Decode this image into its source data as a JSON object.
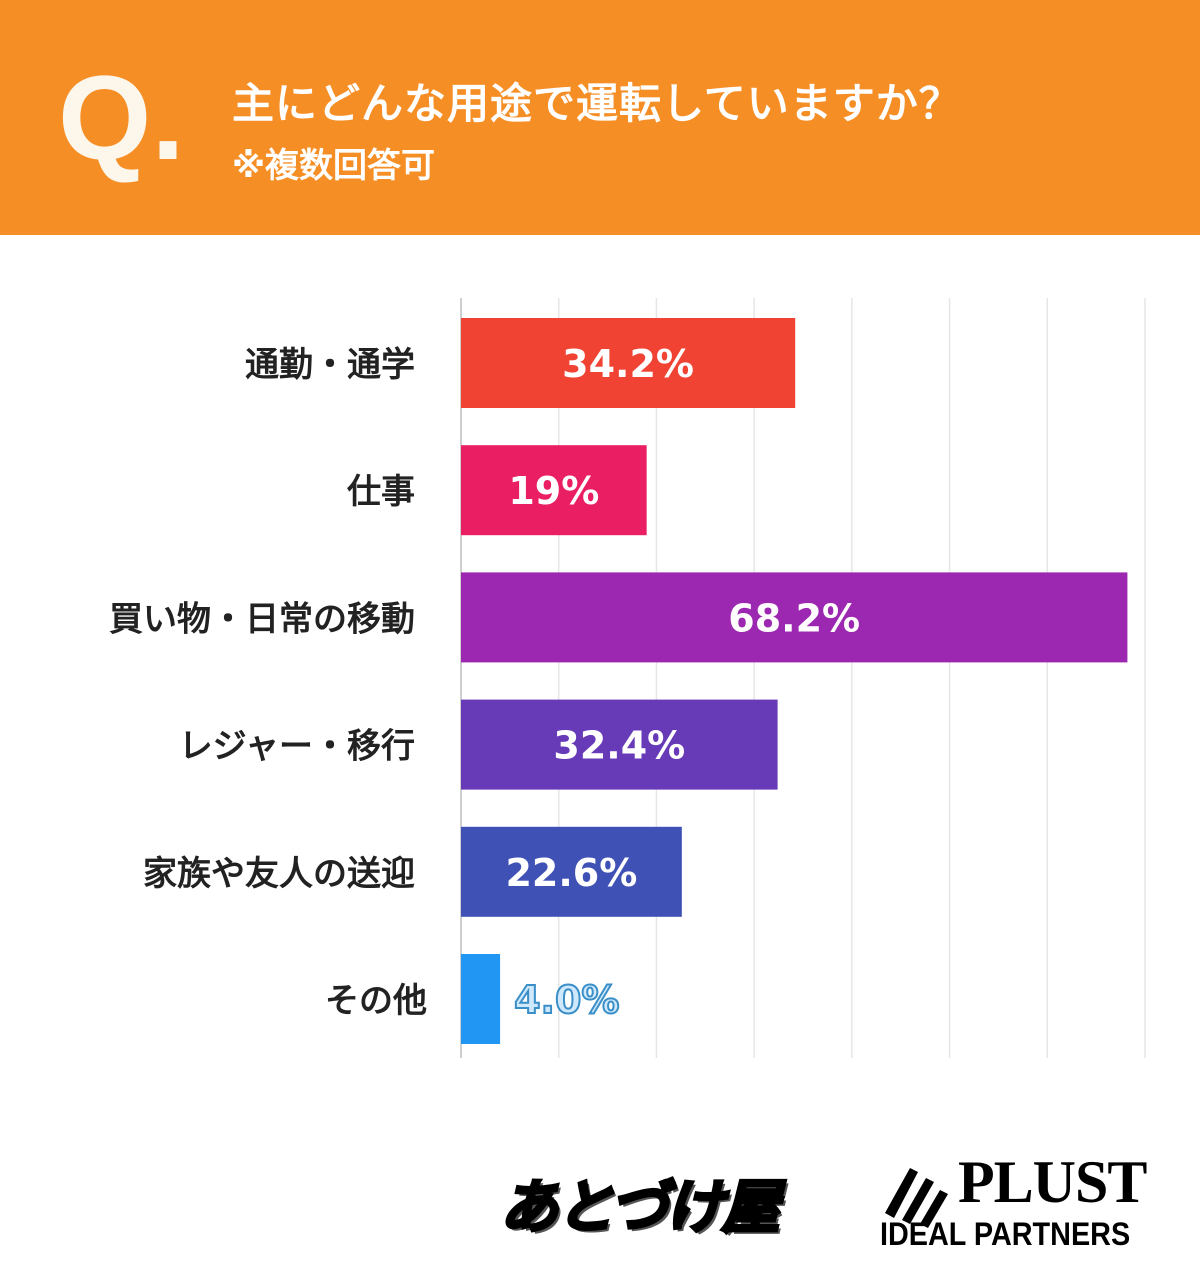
{
  "header": {
    "q_mark": "Q.",
    "title": "主にどんな用途で運転していますか？",
    "subtitle": "※複数回答可"
  },
  "chart_data": {
    "type": "bar",
    "orientation": "horizontal",
    "title": "主にどんな用途で運転していますか？",
    "subtitle": "※複数回答可",
    "categories": [
      "通勤・通学",
      "仕事",
      "買い物・日常の移動",
      "レジャー・移行",
      "家族や友人の送迎",
      "その他"
    ],
    "values": [
      34.2,
      19,
      68.2,
      32.4,
      22.6,
      4.0
    ],
    "value_labels": [
      "34.2%",
      "19%",
      "68.2%",
      "32.4%",
      "22.6%",
      "4.0%"
    ],
    "colors": [
      "#f04333",
      "#e91e63",
      "#9c27b0",
      "#673ab7",
      "#3f51b5",
      "#2196f3"
    ],
    "xlim": [
      0,
      70
    ],
    "grid": true,
    "xlabel": "",
    "ylabel": ""
  },
  "footer": {
    "logo1": "あとづけ屋",
    "logo2_main": "PLUST",
    "logo2_sub": "IDEAL PARTNERS"
  }
}
